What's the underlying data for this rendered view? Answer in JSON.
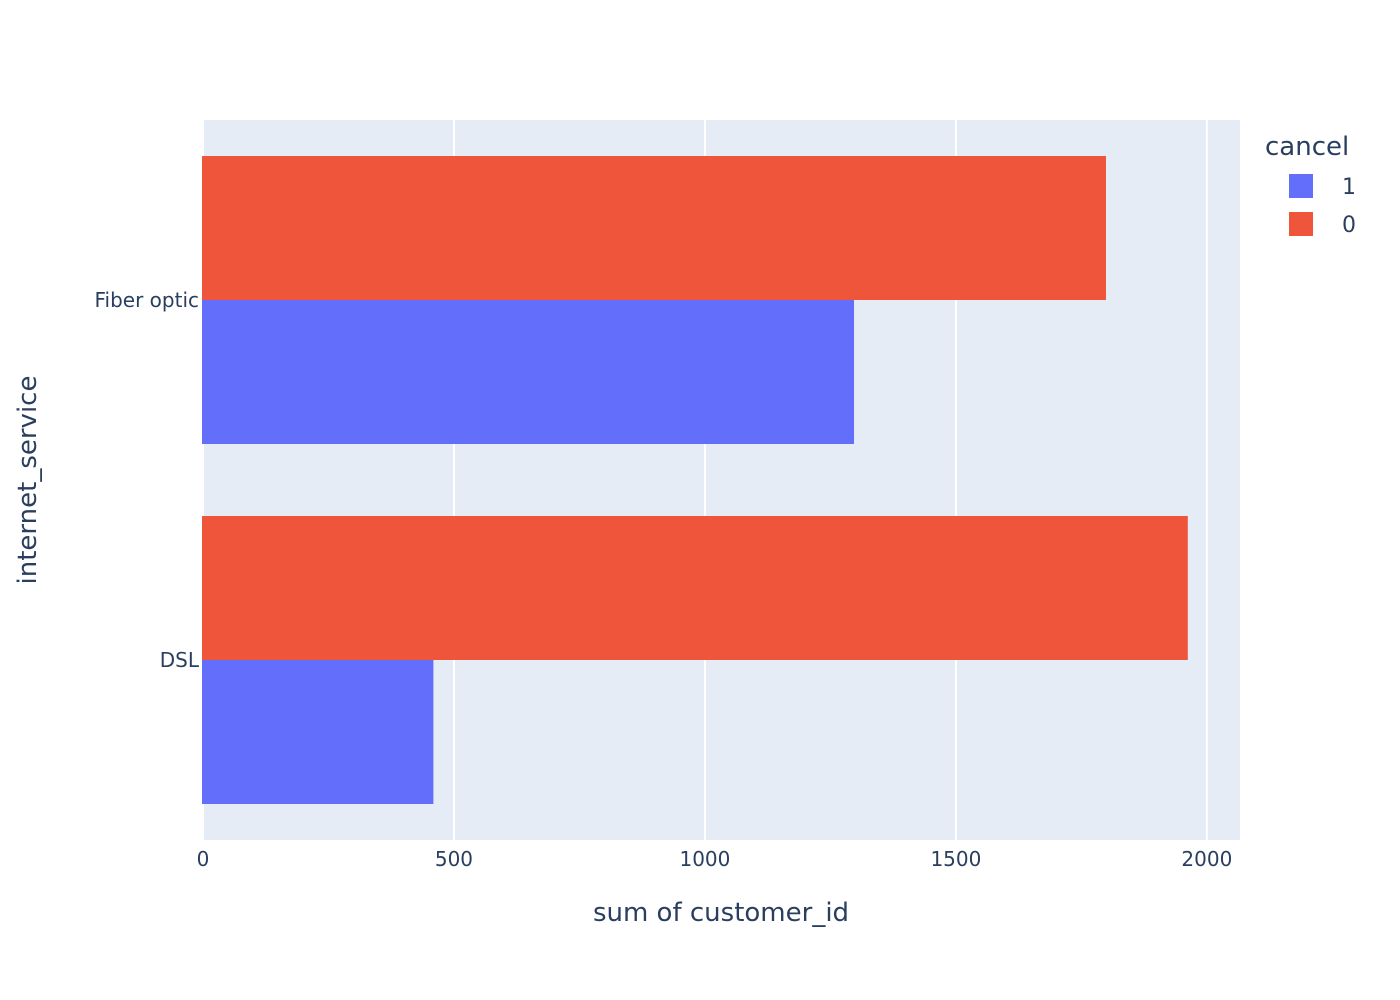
{
  "chart_data": {
    "type": "bar",
    "orientation": "horizontal",
    "barmode": "group",
    "categories": [
      "Fiber optic",
      "DSL"
    ],
    "series": [
      {
        "name": "1",
        "color": "#636efa",
        "values": [
          1297,
          459
        ]
      },
      {
        "name": "0",
        "color": "#ef553b",
        "values": [
          1799,
          1962
        ]
      }
    ],
    "xlabel": "sum of customer_id",
    "ylabel": "internet_service",
    "xlim": [
      0,
      2066
    ],
    "xticks": [
      0,
      500,
      1000,
      1500,
      2000
    ],
    "xtick_labels": [
      "0",
      "500",
      "1000",
      "1500",
      "2000"
    ],
    "grid": true,
    "plot_background": "#e5ecf6",
    "legend": {
      "title": "cancel",
      "placement": "top-right",
      "entries": [
        "1",
        "0"
      ]
    }
  }
}
